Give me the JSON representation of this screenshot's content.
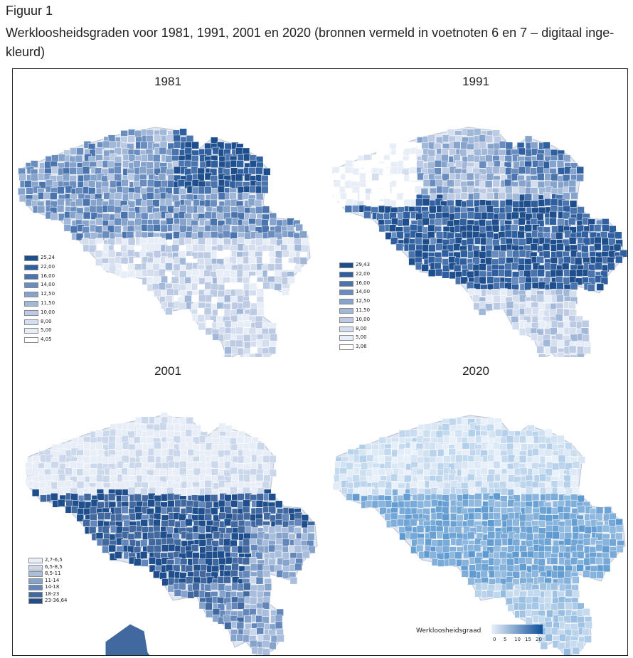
{
  "figure": {
    "label": "Figuur 1",
    "caption": "Werkloosheidsgraden voor 1981, 1991, 2001 en 2020 (bronnen vermeld in voetnoten 6 en 7 – digitaal inge-kleurd)"
  },
  "maps": [
    {
      "year": "1981",
      "legend": [
        {
          "label": "25,24",
          "color": "#1f4e8c"
        },
        {
          "label": "22,00",
          "color": "#2f5f9e"
        },
        {
          "label": "16,00",
          "color": "#4a74ad"
        },
        {
          "label": "14,00",
          "color": "#6a8dbf"
        },
        {
          "label": "12,50",
          "color": "#86a3cc"
        },
        {
          "label": "11,50",
          "color": "#a2b8d8"
        },
        {
          "label": "10,00",
          "color": "#bccbe3"
        },
        {
          "label": "8,00",
          "color": "#d4deee"
        },
        {
          "label": "5,00",
          "color": "#e8eef7"
        },
        {
          "label": "4,05",
          "color": "#ffffff"
        }
      ]
    },
    {
      "year": "1991",
      "legend": [
        {
          "label": "29,43",
          "color": "#1f4e8c"
        },
        {
          "label": "22,00",
          "color": "#2f5f9e"
        },
        {
          "label": "16,00",
          "color": "#4a74ad"
        },
        {
          "label": "14,00",
          "color": "#6a8dbf"
        },
        {
          "label": "12,50",
          "color": "#86a3cc"
        },
        {
          "label": "11,50",
          "color": "#a2b8d8"
        },
        {
          "label": "10,00",
          "color": "#bccbe3"
        },
        {
          "label": "8,00",
          "color": "#d4deee"
        },
        {
          "label": "5,00",
          "color": "#e8eef7"
        },
        {
          "label": "3,06",
          "color": "#ffffff"
        }
      ]
    },
    {
      "year": "2001",
      "legend": [
        {
          "label": "2,7-6,5",
          "color": "#e8eef7"
        },
        {
          "label": "6,5-8,5",
          "color": "#cbd7ea"
        },
        {
          "label": "8,5-11",
          "color": "#a9bedd"
        },
        {
          "label": "11-14",
          "color": "#86a3cc"
        },
        {
          "label": "14-18",
          "color": "#6487bb"
        },
        {
          "label": "18-23",
          "color": "#41689f"
        },
        {
          "label": "23-36,64",
          "color": "#1f4e8c"
        }
      ]
    },
    {
      "year": "2020",
      "gradient": {
        "title": "Werkloosheidsgraad",
        "ticks": [
          "0",
          "5",
          "10",
          "15",
          "20"
        ],
        "color_low": "#e9f1fa",
        "color_high": "#0d4f9c"
      }
    }
  ]
}
